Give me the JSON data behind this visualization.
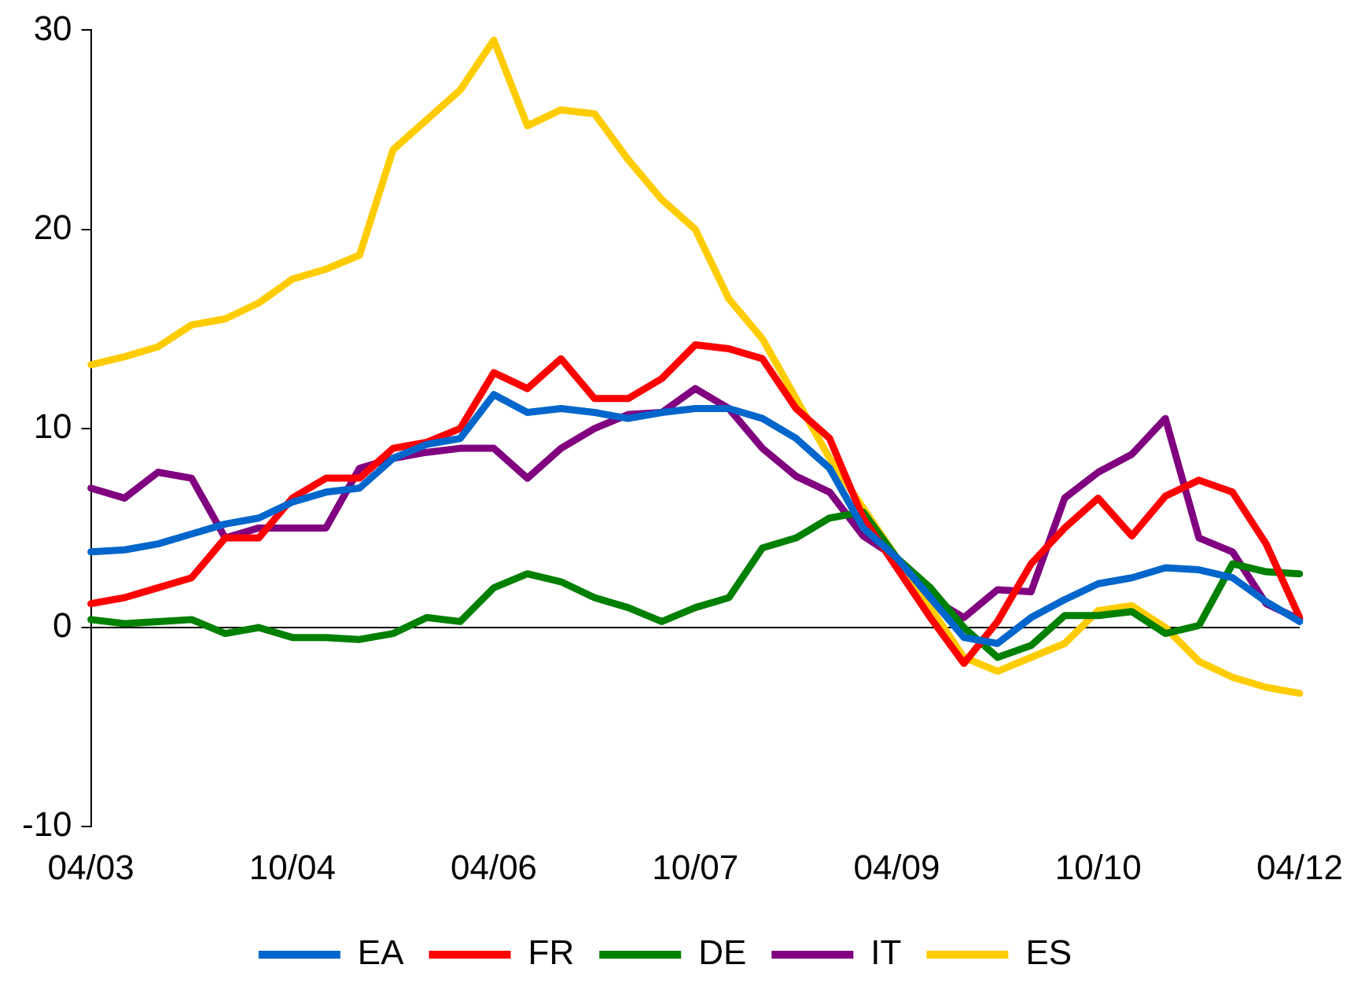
{
  "chart_data": {
    "type": "line",
    "categories": [
      "04/03",
      null,
      null,
      null,
      null,
      null,
      "10/04",
      null,
      null,
      null,
      null,
      null,
      "04/06",
      null,
      null,
      null,
      null,
      null,
      "10/07",
      null,
      null,
      null,
      null,
      null,
      "04/09",
      null,
      null,
      null,
      null,
      null,
      "10/10",
      null,
      null,
      null,
      null,
      null,
      "04/12"
    ],
    "series": [
      {
        "name": "EA",
        "color": "#0066cc",
        "values": [
          3.8,
          3.9,
          4.2,
          4.7,
          5.2,
          5.5,
          6.3,
          6.8,
          7.0,
          8.5,
          9.2,
          9.5,
          11.7,
          10.8,
          11,
          10.8,
          10.5,
          10.8,
          11,
          11,
          10.5,
          9.5,
          8,
          5,
          3.5,
          1.5,
          -0.5,
          -0.8,
          0.5,
          1.4,
          2.2,
          2.5,
          3,
          2.9,
          2.5,
          1.3,
          0.3
        ]
      },
      {
        "name": "FR",
        "color": "#ff0000",
        "values": [
          1.2,
          1.5,
          2.0,
          2.5,
          4.5,
          4.5,
          6.5,
          7.5,
          7.5,
          9,
          9.3,
          10,
          12.8,
          12,
          13.5,
          11.5,
          11.5,
          12.5,
          14.2,
          14,
          13.5,
          11,
          9.5,
          5.5,
          3,
          0.5,
          -1.8,
          0.3,
          3.2,
          5,
          6.5,
          4.6,
          6.6,
          7.4,
          6.8,
          4.2,
          0.5
        ]
      },
      {
        "name": "DE",
        "color": "#008000",
        "values": [
          0.4,
          0.2,
          0.3,
          0.4,
          -0.3,
          0,
          -0.5,
          -0.5,
          -0.6,
          -0.3,
          0.5,
          0.3,
          2,
          2.7,
          2.3,
          1.5,
          1,
          0.3,
          1,
          1.5,
          4,
          4.5,
          5.5,
          5.8,
          3.5,
          2,
          0,
          -1.5,
          -0.9,
          0.6,
          0.6,
          0.8,
          -0.3,
          0.1,
          3.2,
          2.8,
          2.7
        ]
      },
      {
        "name": "IT",
        "color": "#800080",
        "values": [
          7,
          6.5,
          7.8,
          7.5,
          4.5,
          5,
          5,
          5,
          8,
          8.5,
          8.8,
          9,
          9,
          7.5,
          9,
          10,
          10.7,
          10.8,
          12,
          11,
          9,
          7.6,
          6.8,
          4.6,
          3.5,
          1.5,
          0.5,
          1.9,
          1.8,
          6.5,
          7.8,
          8.7,
          10.5,
          4.5,
          3.8,
          1.2,
          0.4
        ]
      },
      {
        "name": "ES",
        "color": "#ffcc00",
        "values": [
          13.2,
          13.6,
          14.1,
          15.2,
          15.5,
          16.3,
          17.5,
          18,
          18.7,
          24,
          25.5,
          27,
          29.5,
          25.2,
          26,
          25.8,
          23.5,
          21.5,
          20,
          16.5,
          14.5,
          11.5,
          8.5,
          6,
          3.5,
          1,
          -1.5,
          -2.2,
          -1.5,
          -0.8,
          0.85,
          1.1,
          0,
          -1.7,
          -2.5,
          -3,
          -3.3
        ]
      }
    ],
    "ylim": [
      -10,
      30
    ],
    "yticks": [
      -10,
      0,
      10,
      20,
      30
    ],
    "grid": false,
    "legend": "bottom",
    "marker": "none",
    "line_style": "solid",
    "ref_lines": [
      {
        "axis": "y",
        "value": 0,
        "color": "#000000"
      }
    ]
  }
}
